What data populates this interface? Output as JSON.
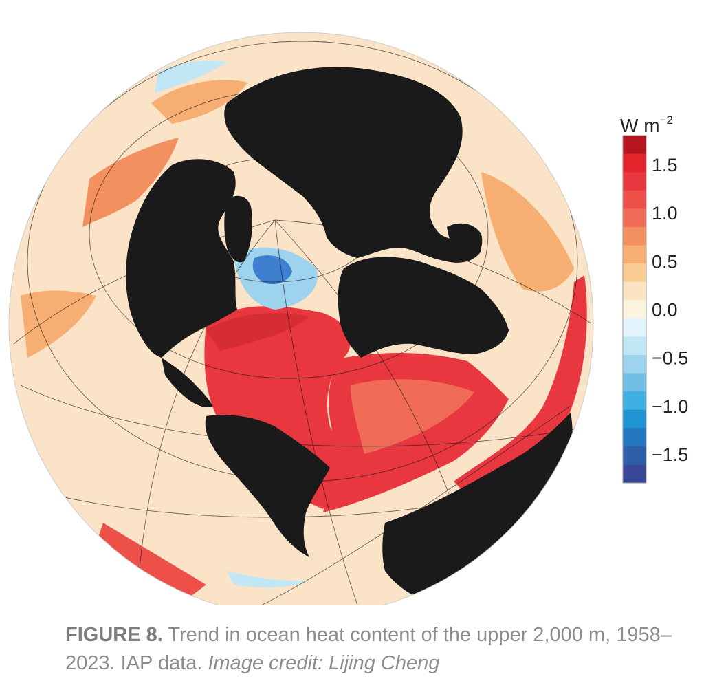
{
  "map": {
    "land_color": "#1a1a1a",
    "background_color": "#fbe3c8",
    "regions": [
      {
        "name": "north-atlantic-warming",
        "color": "#e8373f"
      },
      {
        "name": "south-atlantic-warming",
        "color": "#e8373f"
      },
      {
        "name": "southern-ocean-warming",
        "color": "#e8373f"
      },
      {
        "name": "labrador-sea-cooling",
        "color": "#3f7fd0"
      }
    ]
  },
  "colorbar": {
    "unit_base": "W m",
    "unit_exp": "−2",
    "range": [
      -1.8,
      1.8
    ],
    "ticks": [
      "1.5",
      "1.0",
      "0.5",
      "0.0",
      "−0.5",
      "−1.0",
      "−1.5"
    ],
    "tick_values": [
      1.5,
      1.0,
      0.5,
      0.0,
      -0.5,
      -1.0,
      -1.5
    ],
    "colors": [
      "#b5151d",
      "#e3242b",
      "#e8373f",
      "#ec5048",
      "#ef6b55",
      "#f3905f",
      "#f6ae72",
      "#f9cc93",
      "#fbe3c4",
      "#fdf4e0",
      "#e3f3fb",
      "#c1e6f4",
      "#9dd3ec",
      "#70bee4",
      "#3fb0e2",
      "#1f95d3",
      "#2476be",
      "#2f5ea9",
      "#384697"
    ]
  },
  "caption": {
    "label": "FIGURE 8.",
    "text": " Trend in ocean heat content of the upper 2,000 m, 1958–2023. IAP data. ",
    "credit": "Image credit: Lijing Cheng"
  }
}
